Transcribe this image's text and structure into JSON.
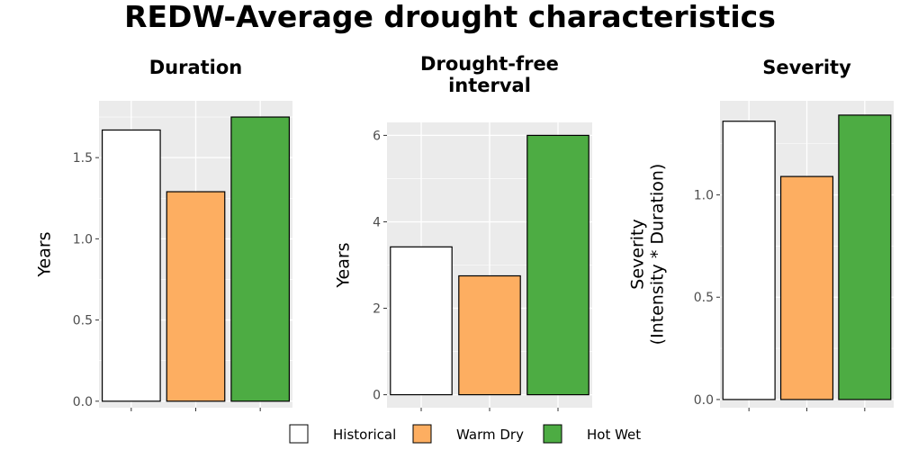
{
  "title": "REDW-Average drought characteristics",
  "legend": {
    "placement": "bottom",
    "items": [
      {
        "label": "Historical",
        "color": "#ffffff"
      },
      {
        "label": "Warm Dry",
        "color": "#fdae61"
      },
      {
        "label": "Hot Wet",
        "color": "#4dac43"
      }
    ]
  },
  "chart_data": [
    {
      "type": "bar",
      "title": "Duration",
      "title_lines": [
        "Duration"
      ],
      "ylabel": "Years",
      "ylabel_lines": [
        "Years"
      ],
      "categories": [
        "Historical",
        "Warm Dry",
        "Hot Wet"
      ],
      "values": [
        1.67,
        1.29,
        1.75
      ],
      "colors": [
        "#ffffff",
        "#fdae61",
        "#4dac43"
      ],
      "ylim": [
        -0.04,
        1.85
      ],
      "yticks": [
        0.0,
        0.5,
        1.0,
        1.5
      ],
      "ytick_labels": [
        "0.0",
        "0.5",
        "1.0",
        "1.5"
      ],
      "grid": true
    },
    {
      "type": "bar",
      "title": "Drought-free interval",
      "title_lines": [
        "Drought-free",
        "interval"
      ],
      "ylabel": "Years",
      "ylabel_lines": [
        "Years"
      ],
      "categories": [
        "Historical",
        "Warm Dry",
        "Hot Wet"
      ],
      "values": [
        3.42,
        2.75,
        6.0
      ],
      "colors": [
        "#ffffff",
        "#fdae61",
        "#4dac43"
      ],
      "ylim": [
        -0.3,
        6.3
      ],
      "yticks": [
        0,
        2,
        4,
        6
      ],
      "ytick_labels": [
        "0",
        "2",
        "4",
        "6"
      ],
      "grid": true
    },
    {
      "type": "bar",
      "title": "Severity",
      "title_lines": [
        "Severity"
      ],
      "ylabel": "Severity (Intensity * Duration)",
      "ylabel_lines": [
        "Severity",
        "(Intensity * Duration)"
      ],
      "categories": [
        "Historical",
        "Warm Dry",
        "Hot Wet"
      ],
      "values": [
        1.36,
        1.09,
        1.39
      ],
      "colors": [
        "#ffffff",
        "#fdae61",
        "#4dac43"
      ],
      "ylim": [
        -0.04,
        1.46
      ],
      "yticks": [
        0.0,
        0.5,
        1.0
      ],
      "ytick_labels": [
        "0.0",
        "0.5",
        "1.0"
      ],
      "grid": true
    }
  ]
}
